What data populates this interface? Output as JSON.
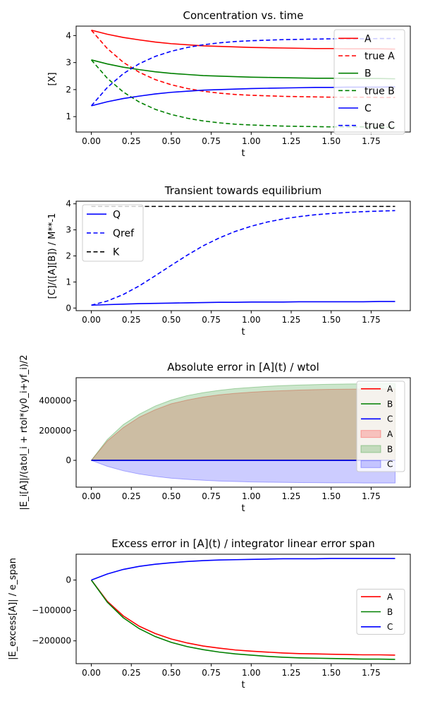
{
  "chart_data": [
    {
      "type": "line",
      "title": "Concentration vs. time",
      "xlabel": "t",
      "ylabel": "[X]",
      "xlim": [
        -0.095,
        1.995
      ],
      "ylim": [
        0.43,
        4.35
      ],
      "xticks": [
        0.0,
        0.25,
        0.5,
        0.75,
        1.0,
        1.25,
        1.5,
        1.75
      ],
      "xtick_labels": [
        "0.00",
        "0.25",
        "0.50",
        "0.75",
        "1.00",
        "1.25",
        "1.50",
        "1.75"
      ],
      "yticks": [
        1,
        2,
        3,
        4
      ],
      "ytick_labels": [
        "1",
        "2",
        "3",
        "4"
      ],
      "legend": "top-right",
      "x": [
        0,
        0.1,
        0.2,
        0.3,
        0.4,
        0.5,
        0.6,
        0.7,
        0.8,
        0.9,
        1.0,
        1.1,
        1.2,
        1.3,
        1.4,
        1.5,
        1.6,
        1.7,
        1.8,
        1.9
      ],
      "series": [
        {
          "name": "A",
          "color": "#ff0000",
          "dash": false,
          "values": [
            4.2,
            4.05,
            3.93,
            3.84,
            3.76,
            3.7,
            3.66,
            3.62,
            3.6,
            3.58,
            3.56,
            3.55,
            3.54,
            3.53,
            3.52,
            3.52,
            3.51,
            3.51,
            3.51,
            3.5
          ]
        },
        {
          "name": "true A",
          "color": "#ff0000",
          "dash": true,
          "values": [
            4.2,
            3.52,
            3.01,
            2.64,
            2.37,
            2.18,
            2.04,
            1.94,
            1.87,
            1.82,
            1.79,
            1.77,
            1.75,
            1.74,
            1.73,
            1.72,
            1.72,
            1.72,
            1.71,
            1.71
          ]
        },
        {
          "name": "B",
          "color": "#008000",
          "dash": false,
          "values": [
            3.1,
            2.95,
            2.83,
            2.74,
            2.66,
            2.6,
            2.56,
            2.52,
            2.5,
            2.48,
            2.46,
            2.45,
            2.44,
            2.43,
            2.42,
            2.42,
            2.41,
            2.41,
            2.41,
            2.4
          ]
        },
        {
          "name": "true B",
          "color": "#008000",
          "dash": true,
          "values": [
            3.1,
            2.42,
            1.91,
            1.54,
            1.27,
            1.08,
            0.94,
            0.84,
            0.77,
            0.72,
            0.69,
            0.67,
            0.65,
            0.64,
            0.63,
            0.62,
            0.62,
            0.62,
            0.61,
            0.61
          ]
        },
        {
          "name": "C",
          "color": "#0000ff",
          "dash": false,
          "values": [
            1.4,
            1.55,
            1.67,
            1.76,
            1.84,
            1.9,
            1.94,
            1.98,
            2.0,
            2.02,
            2.04,
            2.05,
            2.06,
            2.07,
            2.08,
            2.08,
            2.09,
            2.09,
            2.09,
            2.1
          ]
        },
        {
          "name": "true C",
          "color": "#0000ff",
          "dash": true,
          "values": [
            1.4,
            2.08,
            2.59,
            2.96,
            3.23,
            3.42,
            3.56,
            3.66,
            3.73,
            3.78,
            3.81,
            3.83,
            3.85,
            3.86,
            3.87,
            3.88,
            3.88,
            3.88,
            3.89,
            3.89
          ]
        }
      ]
    },
    {
      "type": "line",
      "title": "Transient towards equilibrium",
      "xlabel": "t",
      "ylabel": "[C]/([A][B]) / M**-1",
      "xlim": [
        -0.095,
        1.995
      ],
      "ylim": [
        -0.1,
        4.1
      ],
      "xticks": [
        0.0,
        0.25,
        0.5,
        0.75,
        1.0,
        1.25,
        1.5,
        1.75
      ],
      "xtick_labels": [
        "0.00",
        "0.25",
        "0.50",
        "0.75",
        "1.00",
        "1.25",
        "1.50",
        "1.75"
      ],
      "yticks": [
        0,
        1,
        2,
        3,
        4
      ],
      "ytick_labels": [
        "0",
        "1",
        "2",
        "3",
        "4"
      ],
      "legend": "top-left",
      "x": [
        0,
        0.1,
        0.2,
        0.3,
        0.4,
        0.5,
        0.6,
        0.7,
        0.8,
        0.9,
        1.0,
        1.1,
        1.2,
        1.3,
        1.4,
        1.5,
        1.6,
        1.7,
        1.8,
        1.9
      ],
      "series": [
        {
          "name": "Q",
          "color": "#0000ff",
          "dash": false,
          "values": [
            0.11,
            0.13,
            0.15,
            0.17,
            0.18,
            0.19,
            0.2,
            0.21,
            0.22,
            0.22,
            0.23,
            0.23,
            0.23,
            0.24,
            0.24,
            0.24,
            0.24,
            0.24,
            0.25,
            0.25
          ]
        },
        {
          "name": "Qref",
          "color": "#0000ff",
          "dash": true,
          "values": [
            0.11,
            0.27,
            0.52,
            0.85,
            1.24,
            1.64,
            2.03,
            2.39,
            2.69,
            2.94,
            3.14,
            3.3,
            3.42,
            3.51,
            3.58,
            3.63,
            3.67,
            3.7,
            3.72,
            3.74
          ]
        },
        {
          "name": "K",
          "color": "#000000",
          "dash": true,
          "values": [
            3.9,
            3.9,
            3.9,
            3.9,
            3.9,
            3.9,
            3.9,
            3.9,
            3.9,
            3.9,
            3.9,
            3.9,
            3.9,
            3.9,
            3.9,
            3.9,
            3.9,
            3.9,
            3.9,
            3.9
          ]
        }
      ]
    },
    {
      "type": "area",
      "title": "Absolute error in [A](t) / wtol",
      "xlabel": "t",
      "ylabel": "|E_i[A]|/(atol_i + rtol*(y0_i+yf_i)/2",
      "xlim": [
        -0.095,
        1.995
      ],
      "ylim": [
        -180000,
        555000
      ],
      "xticks": [
        0.0,
        0.25,
        0.5,
        0.75,
        1.0,
        1.25,
        1.5,
        1.75
      ],
      "xtick_labels": [
        "0.00",
        "0.25",
        "0.50",
        "0.75",
        "1.00",
        "1.25",
        "1.50",
        "1.75"
      ],
      "yticks": [
        0,
        200000,
        400000
      ],
      "ytick_labels": [
        "0",
        "200000",
        "400000"
      ],
      "legend": "top-right",
      "x": [
        0,
        0.1,
        0.2,
        0.3,
        0.4,
        0.5,
        0.6,
        0.7,
        0.8,
        0.9,
        1.0,
        1.1,
        1.2,
        1.3,
        1.4,
        1.5,
        1.6,
        1.7,
        1.8,
        1.9
      ],
      "series": [
        {
          "name": "A",
          "color": "#ff0000",
          "kind": "line",
          "values": [
            0,
            0,
            0,
            0,
            0,
            0,
            0,
            0,
            0,
            0,
            0,
            0,
            0,
            0,
            0,
            0,
            0,
            0,
            0,
            0
          ]
        },
        {
          "name": "B",
          "color": "#008000",
          "kind": "line",
          "values": [
            0,
            0,
            0,
            0,
            0,
            0,
            0,
            0,
            0,
            0,
            0,
            0,
            0,
            0,
            0,
            0,
            0,
            0,
            0,
            0
          ]
        },
        {
          "name": "C",
          "color": "#0000ff",
          "kind": "line",
          "values": [
            0,
            0,
            0,
            0,
            0,
            0,
            0,
            0,
            0,
            0,
            0,
            0,
            0,
            0,
            0,
            0,
            0,
            0,
            0,
            0
          ]
        },
        {
          "name": "A",
          "color": "#ff0000",
          "kind": "band",
          "values": [
            0,
            130000,
            220000,
            290000,
            340000,
            380000,
            405000,
            425000,
            440000,
            450000,
            458000,
            464000,
            468000,
            472000,
            475000,
            477000,
            478000,
            479000,
            480000,
            480000
          ]
        },
        {
          "name": "B",
          "color": "#008000",
          "kind": "band",
          "values": [
            0,
            140000,
            240000,
            310000,
            365000,
            405000,
            435000,
            455000,
            470000,
            482000,
            490000,
            497000,
            502000,
            506000,
            509000,
            511000,
            513000,
            514000,
            515000,
            515000
          ]
        },
        {
          "name": "C",
          "color": "#0000ff",
          "kind": "band",
          "values": [
            0,
            -40000,
            -70000,
            -92000,
            -108000,
            -120000,
            -128000,
            -134000,
            -139000,
            -142000,
            -145000,
            -147000,
            -148000,
            -149000,
            -150000,
            -151000,
            -151000,
            -152000,
            -152000,
            -152000
          ]
        }
      ]
    },
    {
      "type": "line",
      "title": "Excess error in [A](t) / integrator linear error span",
      "xlabel": "t",
      "ylabel": "|E_excess[A]| / e_span",
      "xlim": [
        -0.095,
        1.995
      ],
      "ylim": [
        -275000,
        85000
      ],
      "xticks": [
        0.0,
        0.25,
        0.5,
        0.75,
        1.0,
        1.25,
        1.5,
        1.75
      ],
      "xtick_labels": [
        "0.00",
        "0.25",
        "0.50",
        "0.75",
        "1.00",
        "1.25",
        "1.50",
        "1.75"
      ],
      "yticks": [
        -200000,
        -100000,
        0
      ],
      "ytick_labels": [
        "−200000",
        "−100000",
        "0"
      ],
      "legend": "center-right",
      "x": [
        0,
        0.1,
        0.2,
        0.3,
        0.4,
        0.5,
        0.6,
        0.7,
        0.8,
        0.9,
        1.0,
        1.1,
        1.2,
        1.3,
        1.4,
        1.5,
        1.6,
        1.7,
        1.8,
        1.9
      ],
      "series": [
        {
          "name": "A",
          "color": "#ff0000",
          "dash": false,
          "values": [
            0,
            -70000,
            -118000,
            -152000,
            -176000,
            -194000,
            -207000,
            -217000,
            -224000,
            -230000,
            -234000,
            -237000,
            -240000,
            -242000,
            -243000,
            -244000,
            -245000,
            -246000,
            -246000,
            -247000
          ]
        },
        {
          "name": "B",
          "color": "#008000",
          "dash": false,
          "values": [
            0,
            -73000,
            -124000,
            -160000,
            -186000,
            -205000,
            -219000,
            -229000,
            -237000,
            -243000,
            -247000,
            -251000,
            -254000,
            -256000,
            -257000,
            -258000,
            -259000,
            -260000,
            -260000,
            -261000
          ]
        },
        {
          "name": "C",
          "color": "#0000ff",
          "dash": false,
          "values": [
            0,
            20000,
            35000,
            45000,
            52000,
            57000,
            61000,
            64000,
            66000,
            67000,
            68000,
            69000,
            70000,
            70000,
            70000,
            71000,
            71000,
            71000,
            71000,
            71000
          ]
        }
      ]
    }
  ]
}
